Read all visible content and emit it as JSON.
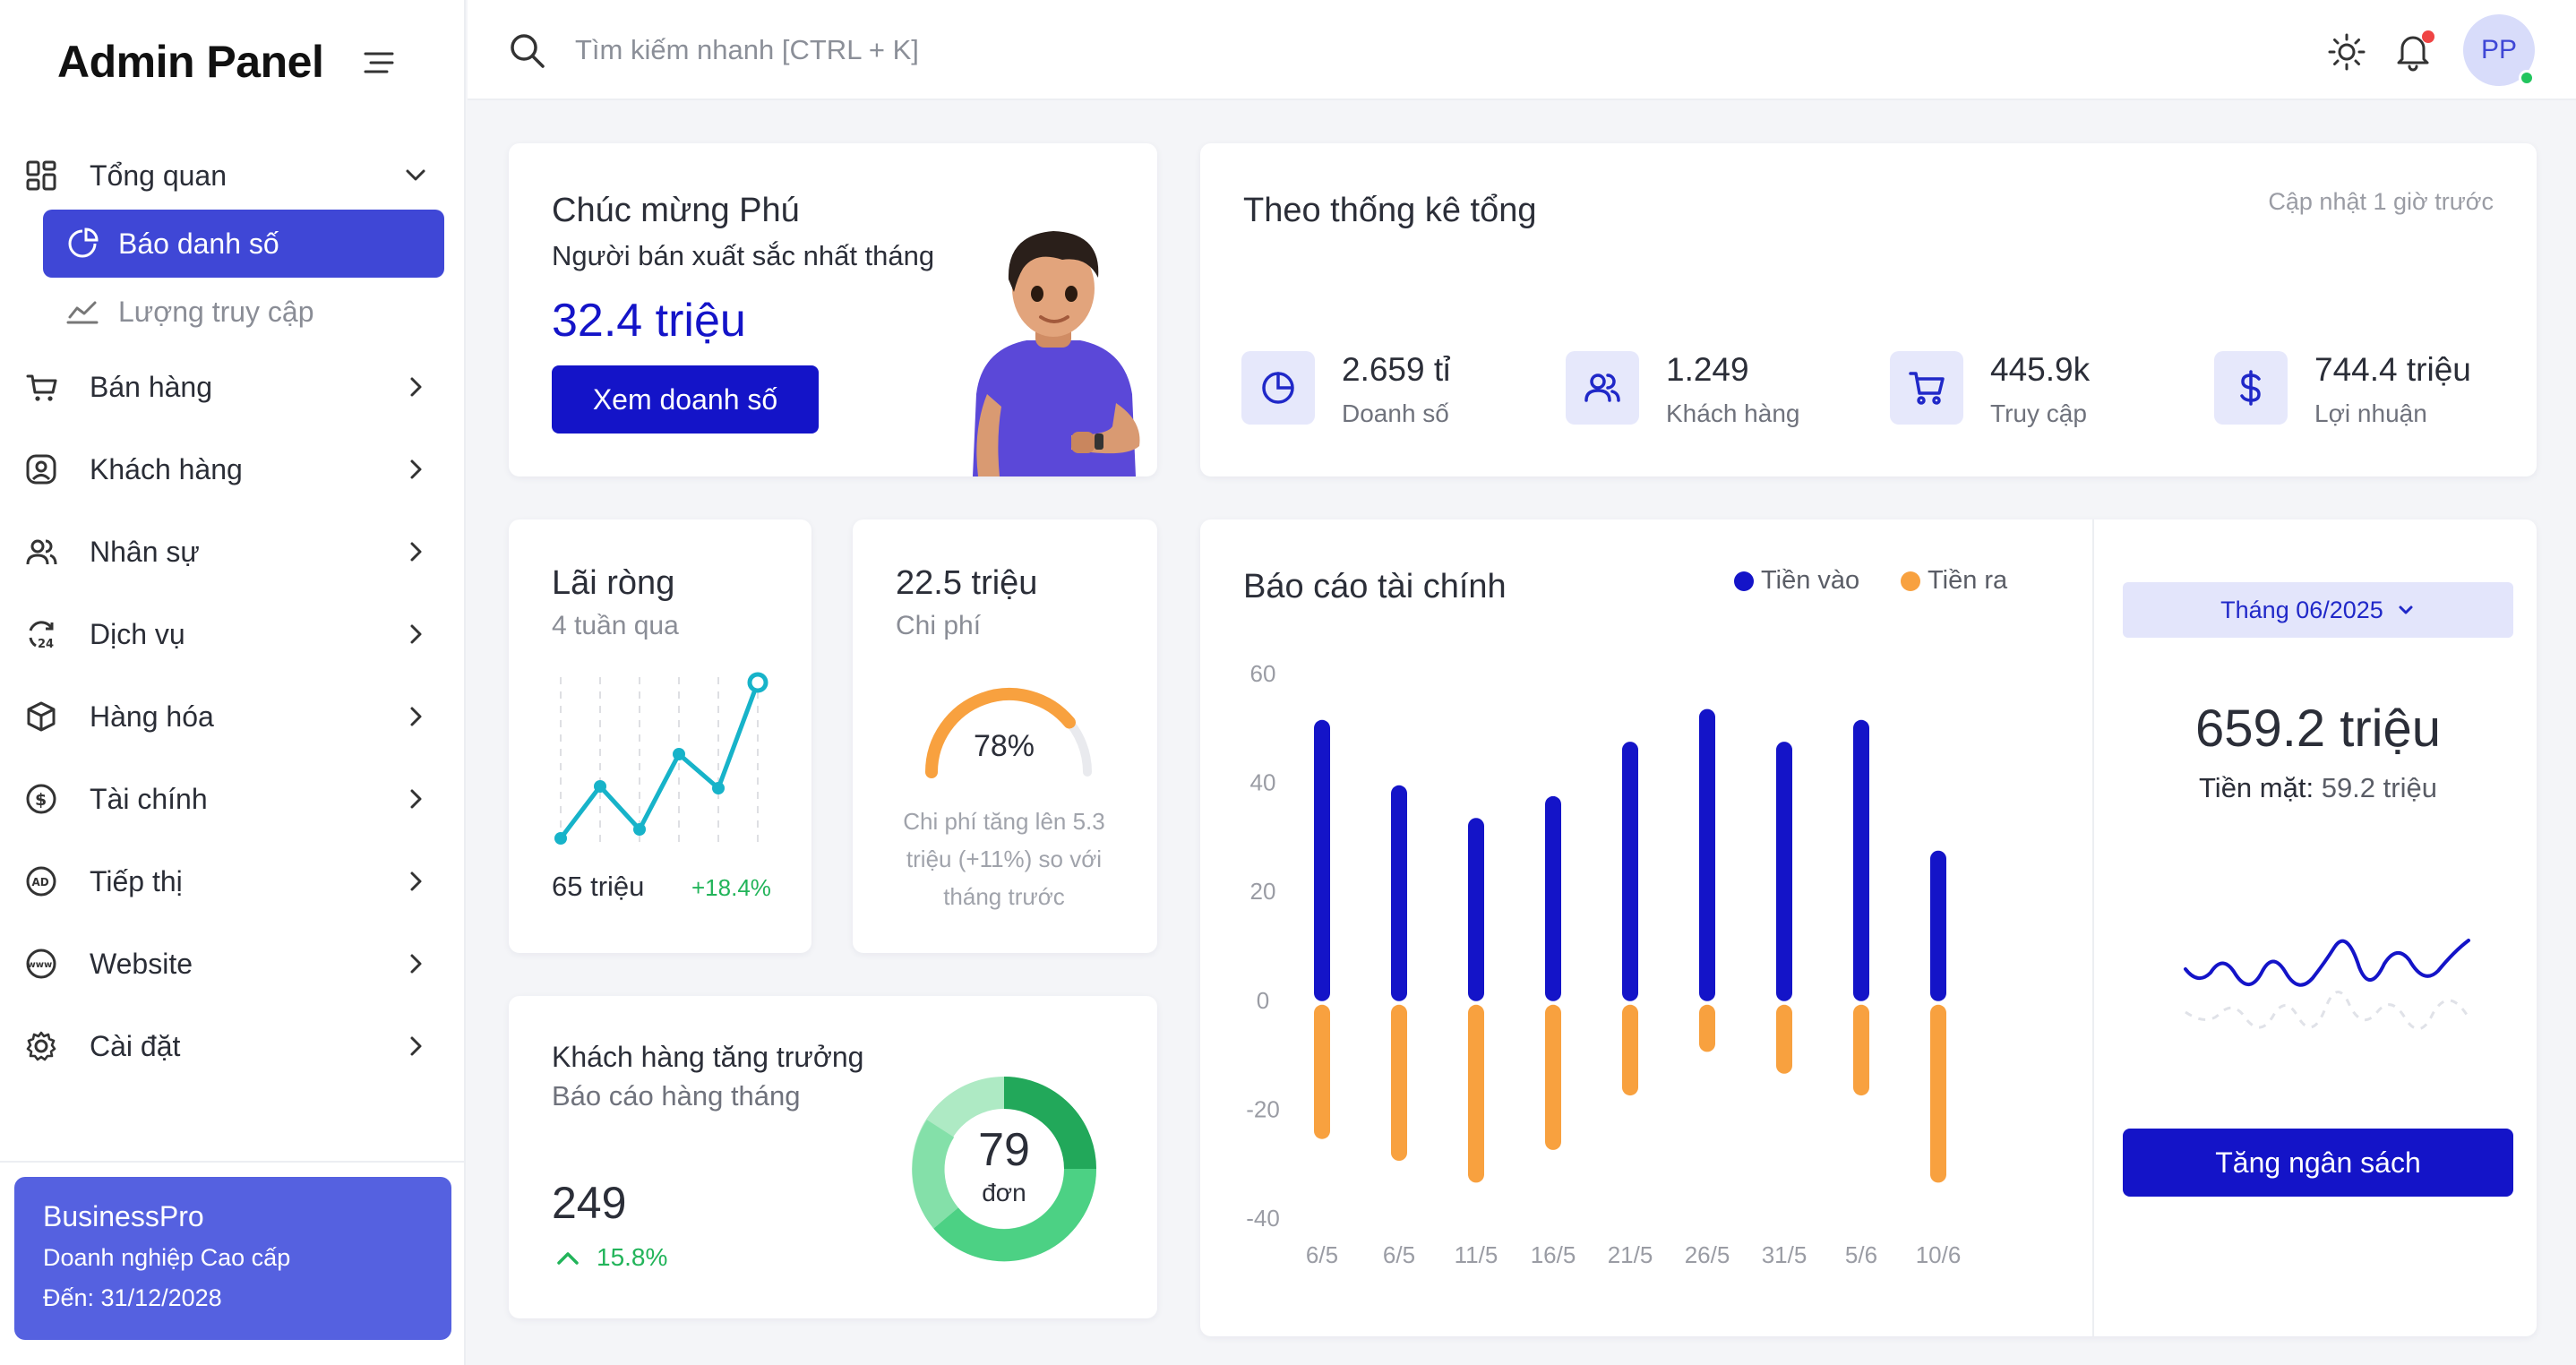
{
  "sidebar": {
    "brand": "Admin Panel",
    "overview": {
      "label": "Tổng quan"
    },
    "sub_items": [
      {
        "label": "Báo danh số",
        "active": true
      },
      {
        "label": "Lượng truy cập",
        "active": false
      }
    ],
    "items": [
      {
        "label": "Bán hàng",
        "icon": "cart-icon"
      },
      {
        "label": "Khách hàng",
        "icon": "user-circle-icon"
      },
      {
        "label": "Nhân sự",
        "icon": "users-icon"
      },
      {
        "label": "Dịch vụ",
        "icon": "service-24-icon"
      },
      {
        "label": "Hàng hóa",
        "icon": "box-icon"
      },
      {
        "label": "Tài chính",
        "icon": "dollar-circle-icon"
      },
      {
        "label": "Tiếp thị",
        "icon": "ad-icon"
      },
      {
        "label": "Website",
        "icon": "www-icon"
      },
      {
        "label": "Cài đặt",
        "icon": "gear-icon"
      }
    ],
    "promo": {
      "title": "BusinessPro",
      "plan": "Doanh nghiệp Cao cấp",
      "expiry": "Đến: 31/12/2028"
    }
  },
  "topbar": {
    "search_placeholder": "Tìm kiếm nhanh [CTRL + K]",
    "avatar_initials": "PP"
  },
  "welcome": {
    "title": "Chúc mừng Phú",
    "subtitle": "Người bán xuất sắc nhất tháng",
    "amount": "32.4 triệu",
    "button": "Xem doanh số"
  },
  "stats": {
    "title": "Theo thống kê tổng",
    "updated": "Cập nhật 1 giờ trước",
    "items": [
      {
        "value": "2.659 tỉ",
        "label": "Doanh số",
        "icon": "pie-chart-icon"
      },
      {
        "value": "1.249",
        "label": "Khách hàng",
        "icon": "users-icon"
      },
      {
        "value": "445.9k",
        "label": "Truy cập",
        "icon": "cart-icon"
      },
      {
        "value": "744.4 triệu",
        "label": "Lợi nhuận",
        "icon": "dollar-icon"
      }
    ]
  },
  "profit": {
    "title": "Lãi ròng",
    "subtitle": "4 tuần qua",
    "value": "65 triệu",
    "change": "+18.4%"
  },
  "cost": {
    "value": "22.5 triệu",
    "label": "Chi phí",
    "percent": "78%",
    "percent_value": 0.78,
    "note": "Chi phí tăng lên 5.3 triệu (+11%) so với tháng trước"
  },
  "customers": {
    "title": "Khách hàng tăng trưởng",
    "subtitle": "Báo cáo hàng tháng",
    "value": "249",
    "change": "15.8%",
    "donut_value": "79",
    "donut_label": "đơn"
  },
  "finance": {
    "title": "Báo cáo tài chính",
    "legend_in": "Tiền vào",
    "legend_out": "Tiền ra",
    "color_in": "#1414c8",
    "color_out": "#f8a13f",
    "month_select": "Tháng 06/2025",
    "total": "659.2 triệu",
    "cash_label": "Tiền mặt:",
    "cash_value": "59.2 triệu",
    "button": "Tăng ngân sách"
  },
  "chart_data": {
    "type": "bar",
    "categories": [
      "6/5",
      "6/5",
      "11/5",
      "16/5",
      "21/5",
      "26/5",
      "31/5",
      "5/6",
      "10/6"
    ],
    "series": [
      {
        "name": "Tiền vào",
        "values": [
          50,
          38,
          32,
          36,
          46,
          52,
          46,
          50,
          26
        ]
      },
      {
        "name": "Tiền ra",
        "values": [
          -24,
          -28,
          -32,
          -26,
          -16,
          -8,
          -12,
          -16,
          -32
        ]
      }
    ],
    "y_ticks": [
      60,
      40,
      20,
      0,
      -20,
      -40
    ],
    "ylim": [
      -40,
      60
    ]
  }
}
